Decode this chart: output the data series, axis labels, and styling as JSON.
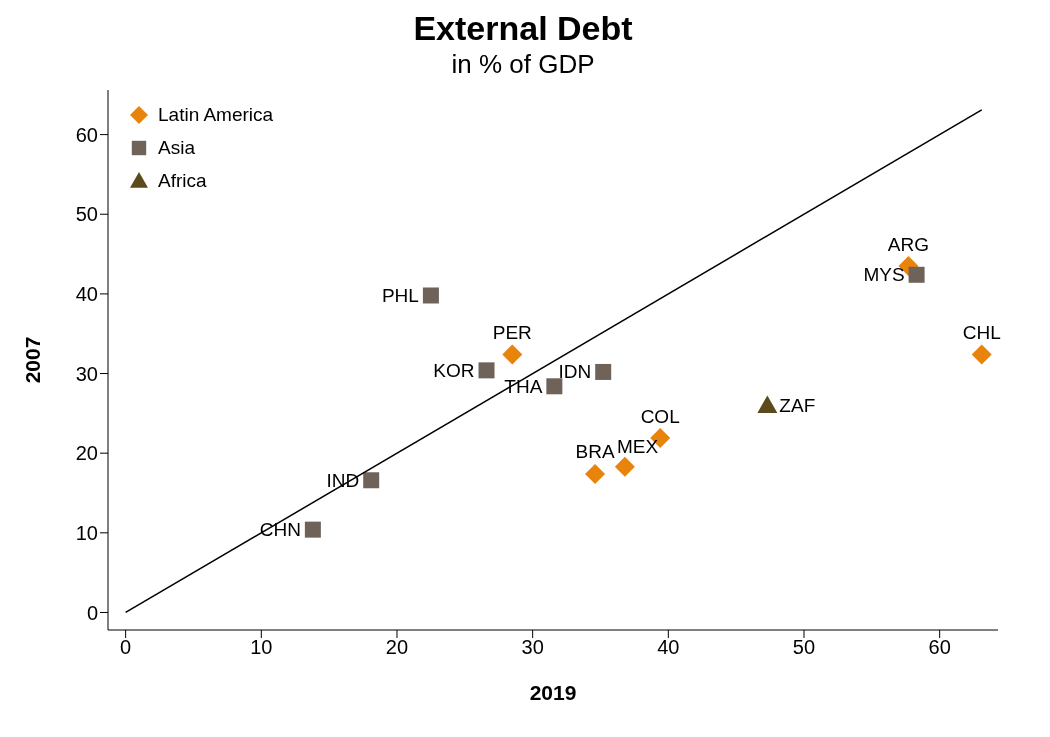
{
  "chart_data": {
    "type": "scatter",
    "title": "External Debt",
    "subtitle": "in % of GDP",
    "xlabel": "2019",
    "ylabel": "2007",
    "xlim": [
      -1.3,
      64.3
    ],
    "ylim": [
      -2.2,
      65.6
    ],
    "xticks": [
      0,
      10,
      20,
      30,
      40,
      50,
      60
    ],
    "yticks": [
      0,
      10,
      20,
      30,
      40,
      50,
      60
    ],
    "grid": false,
    "legend": "top left",
    "series": [
      {
        "name": "Latin America",
        "color": "#e8830c",
        "marker": "diamond",
        "x": [
          28.5,
          34.6,
          36.8,
          39.4,
          57.7,
          63.1
        ],
        "values": [
          32.4,
          17.4,
          18.3,
          21.9,
          43.5,
          32.4
        ]
      },
      {
        "name": "Asia",
        "color": "#6e6259",
        "marker": "square",
        "x": [
          13.8,
          18.1,
          22.5,
          26.6,
          31.6,
          35.2,
          58.3
        ],
        "values": [
          10.4,
          16.6,
          39.8,
          30.4,
          28.4,
          30.2,
          42.4
        ]
      },
      {
        "name": "Africa",
        "color": "#5c4a1c",
        "marker": "triangle",
        "x": [
          47.3
        ],
        "values": [
          26.0
        ]
      },
      {
        "type": "line",
        "color": "#000000",
        "marker": "none",
        "x": [
          0,
          63.1
        ],
        "values": [
          0,
          63.1
        ]
      }
    ],
    "annotations": [
      {
        "text": "CHN",
        "x": 13.8,
        "y": 10.4
      },
      {
        "text": "IND",
        "x": 18.1,
        "y": 16.6
      },
      {
        "text": "PHL",
        "x": 22.5,
        "y": 39.8
      },
      {
        "text": "KOR",
        "x": 26.6,
        "y": 30.4
      },
      {
        "text": "PER",
        "x": 28.5,
        "y": 32.4
      },
      {
        "text": "THA",
        "x": 31.6,
        "y": 28.4
      },
      {
        "text": "IDN",
        "x": 35.2,
        "y": 30.2
      },
      {
        "text": "BRA",
        "x": 34.6,
        "y": 17.4
      },
      {
        "text": "MEX",
        "x": 36.8,
        "y": 18.3
      },
      {
        "text": "COL",
        "x": 39.4,
        "y": 21.9
      },
      {
        "text": "ZAF",
        "x": 47.3,
        "y": 26.0
      },
      {
        "text": "ARG",
        "x": 57.7,
        "y": 43.5
      },
      {
        "text": "MYS",
        "x": 58.3,
        "y": 42.4
      },
      {
        "text": "CHL",
        "x": 63.1,
        "y": 32.4
      }
    ]
  }
}
